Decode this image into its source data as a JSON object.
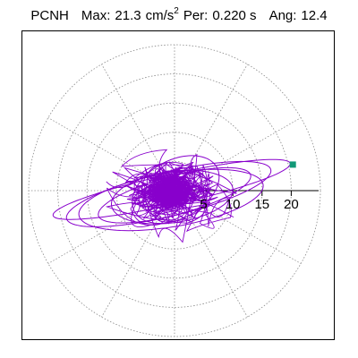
{
  "header": {
    "station": "PCNH",
    "max_label": "Max:",
    "max_value": "21.3",
    "max_unit": "cm/s",
    "max_unit_exp": "2",
    "per_label": "Per:",
    "per_value": "0.220 s",
    "ang_label": "Ang:",
    "ang_value": "12.4"
  },
  "chart_data": {
    "type": "polar-orbit",
    "radial_ticks": [
      {
        "value": 5,
        "label": "5"
      },
      {
        "value": 10,
        "label": "10"
      },
      {
        "value": 15,
        "label": "15"
      },
      {
        "value": 20,
        "label": "20"
      }
    ],
    "rlim": [
      0,
      25
    ],
    "spoke_angles_deg": [
      0,
      30,
      60,
      90,
      120,
      150,
      180,
      210,
      240,
      270,
      300,
      330
    ],
    "grid": true,
    "trace_color": "#8800cc",
    "marker_color": "#119977",
    "max_value": 21.3,
    "max_angle_deg": 12.4,
    "orbits": [
      {
        "a": 20.8,
        "b": 2.6,
        "tilt_deg": 12.4,
        "cx": -0.5,
        "cy": 0.2
      },
      {
        "a": 18.0,
        "b": 3.8,
        "tilt_deg": 13.5,
        "cx": -1.0,
        "cy": -0.6
      },
      {
        "a": 16.0,
        "b": 4.6,
        "tilt_deg": 9.5,
        "cx": -0.6,
        "cy": -1.6
      },
      {
        "a": 13.5,
        "b": 3.3,
        "tilt_deg": 15.0,
        "cx": 0.0,
        "cy": -0.8
      },
      {
        "a": 10.5,
        "b": 4.4,
        "tilt_deg": 8.0,
        "cx": -0.4,
        "cy": -1.1
      },
      {
        "a": 8.0,
        "b": 5.0,
        "tilt_deg": 28.0,
        "cx": 0.2,
        "cy": 0.2
      }
    ]
  }
}
